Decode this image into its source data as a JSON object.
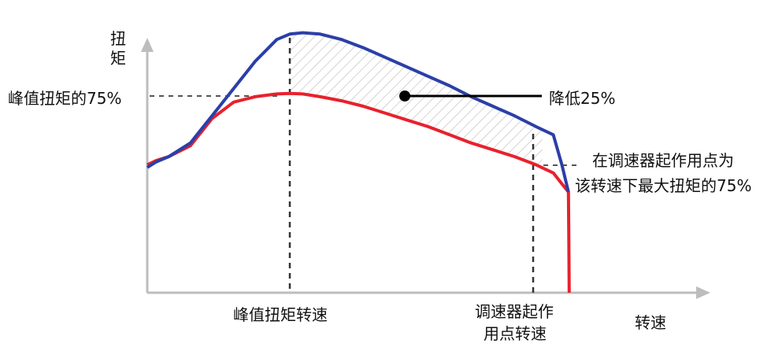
{
  "chart_data": {
    "type": "line",
    "y_axis_label_chars": [
      "扭",
      "矩"
    ],
    "x_axis_label": "转速",
    "series": [
      {
        "color": "#2b3fa8",
        "x": [
          0,
          2,
          5,
          10,
          15,
          20,
          25,
          30,
          33,
          36,
          40,
          45,
          50,
          55,
          60,
          65,
          70,
          75,
          80,
          85,
          90,
          94,
          96,
          97.5
        ],
        "y": [
          46,
          48,
          50,
          55,
          65,
          75,
          85,
          93,
          95,
          95.5,
          95,
          93,
          90,
          86.5,
          83,
          79.5,
          76,
          72,
          68.5,
          65,
          61,
          58,
          47,
          37
        ]
      },
      {
        "color": "#e8212d",
        "x": [
          0,
          2,
          5,
          10,
          15,
          20,
          25,
          30,
          33,
          36,
          40,
          45,
          50,
          55,
          60,
          65,
          70,
          75,
          80,
          85,
          90,
          94,
          96,
          97.5,
          97.6,
          97.7
        ],
        "y": [
          47,
          48.5,
          50,
          54,
          64,
          70,
          72,
          73,
          73.2,
          73,
          72,
          70.5,
          68.5,
          66,
          63.5,
          61,
          58,
          55,
          52.5,
          50,
          47,
          44,
          40,
          37,
          20,
          0
        ]
      }
    ],
    "reference_lines": {
      "horizontal_75_peak": 72,
      "horizontal_75_governor": 45,
      "vertical_peak_speed": 33,
      "vertical_governor_speed": 91.5
    },
    "xlim": [
      0,
      130
    ],
    "ylim": [
      0,
      100
    ]
  },
  "annotations": {
    "peak_75_label": "峰值扭矩的75%",
    "reduce_label": "降低25%",
    "governor_75_line1": "在调速器起作用点为",
    "governor_75_line2": "该转速下最大扭矩的75%",
    "peak_speed_label": "峰值扭矩转速",
    "governor_speed_line1": "调速器起作",
    "governor_speed_line2": "用点转速"
  }
}
